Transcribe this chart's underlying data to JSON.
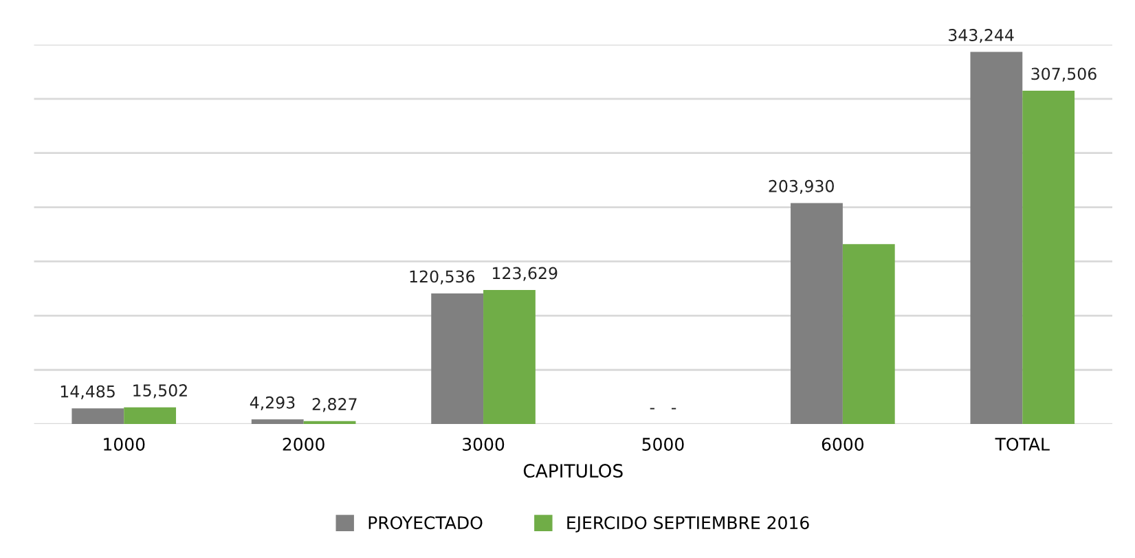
{
  "chart_data": {
    "type": "bar",
    "xlabel": "CAPITULOS",
    "categories": [
      "1000",
      "2000",
      "3000",
      "5000",
      "6000",
      "TOTAL"
    ],
    "series": [
      {
        "name": "PROYECTADO",
        "color": "#808080",
        "values": [
          14485,
          4293,
          120536,
          0,
          203930,
          343244
        ],
        "value_labels": [
          "14,485",
          "4,293",
          "120,536",
          "-",
          "203,930",
          "343,244"
        ]
      },
      {
        "name": "EJERCIDO SEPTIEMBRE 2016",
        "color": "#70ad47",
        "values": [
          15502,
          2827,
          123629,
          0,
          166000,
          307506
        ],
        "value_labels": [
          "15,502",
          "2,827",
          "123,629",
          "-",
          null,
          "307,506"
        ]
      }
    ],
    "ylim": [
      0,
      350000
    ],
    "yticks": [
      {
        "value": 0,
        "label": null
      },
      {
        "value": 50000,
        "label": null
      },
      {
        "value": 100000,
        "label": null
      },
      {
        "value": 150000,
        "label": null
      },
      {
        "value": 200000,
        "label": null
      },
      {
        "value": 250000,
        "label": null
      },
      {
        "value": 300000,
        "label": null
      },
      {
        "value": 350000,
        "label": null
      }
    ],
    "grid": "y",
    "legend": "bottom",
    "tick_labels": "x"
  }
}
